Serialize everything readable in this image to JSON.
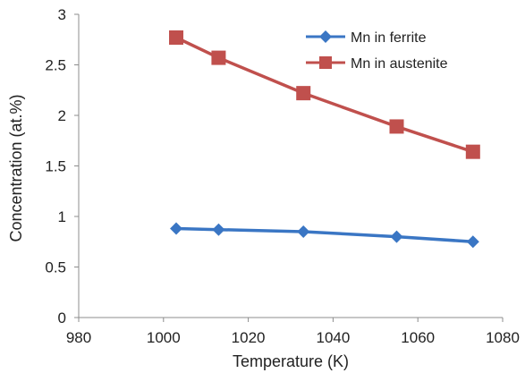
{
  "chart_data": {
    "type": "line",
    "title": "",
    "xlabel": "Temperature (K)",
    "ylabel": "Concentration (at.%)",
    "xlim": [
      980,
      1080
    ],
    "ylim": [
      0,
      3
    ],
    "xticks": [
      980,
      1000,
      1020,
      1040,
      1060,
      1080
    ],
    "yticks": [
      0,
      0.5,
      1,
      1.5,
      2,
      2.5,
      3
    ],
    "ytick_labels": [
      "0",
      "0.5",
      "1",
      "1.5",
      "2",
      "2.5",
      "3"
    ],
    "grid": false,
    "legend_position": "top-right",
    "series": [
      {
        "name": "Mn in ferrite",
        "color": "#3a76c4",
        "marker": "diamond",
        "x": [
          1003,
          1013,
          1033,
          1055,
          1073
        ],
        "y": [
          0.88,
          0.87,
          0.85,
          0.8,
          0.75
        ]
      },
      {
        "name": "Mn in austenite",
        "color": "#c0504d",
        "marker": "square",
        "x": [
          1003,
          1013,
          1033,
          1055,
          1073
        ],
        "y": [
          2.77,
          2.57,
          2.22,
          1.89,
          1.64
        ]
      }
    ]
  }
}
